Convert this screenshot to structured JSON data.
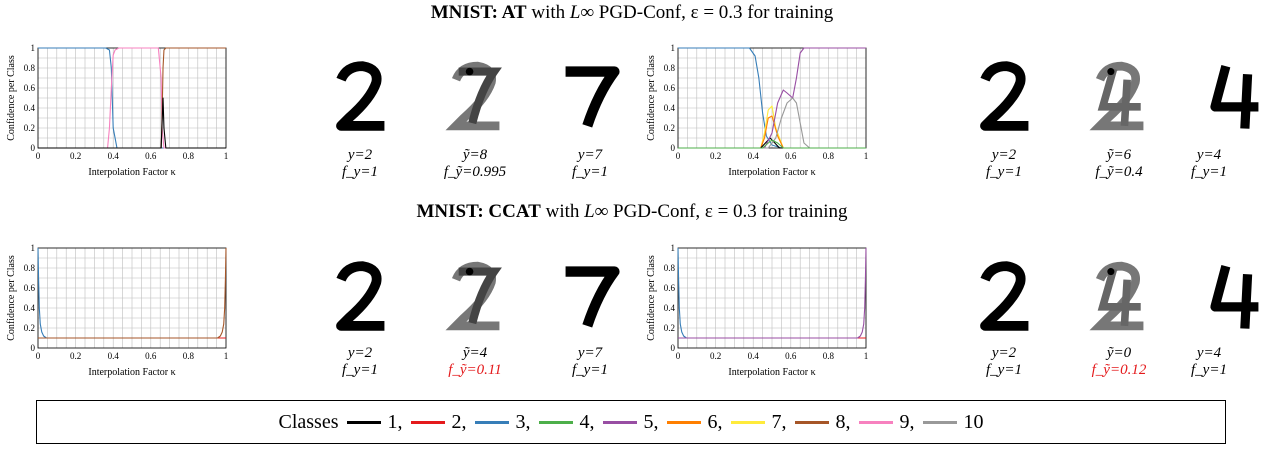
{
  "titles": [
    {
      "bold": "MNIST: AT",
      "math": "L∞",
      "text": " PGD-Conf, ε = 0.3 for training"
    },
    {
      "bold": "MNIST: CCAT",
      "math": "L∞",
      "text": " PGD-Conf, ε = 0.3 for training"
    }
  ],
  "title_joiner": " with ",
  "class_colors": [
    "#000000",
    "#e41a1c",
    "#377eb8",
    "#4daf4a",
    "#984ea3",
    "#ff7f00",
    "#ffeb3b",
    "#a65628",
    "#f781bf",
    "#999999"
  ],
  "legend": {
    "label": "Classes",
    "items": [
      "1,",
      "2,",
      "3,",
      "4,",
      "5,",
      "6,",
      "7,",
      "8,",
      "9,",
      "10"
    ]
  },
  "captions": [
    [
      {
        "a": "y=2",
        "b": "f_y=1"
      },
      {
        "a": "ỹ=8",
        "b": "f_ỹ=0.995"
      },
      {
        "a": "y=7",
        "b": "f_y=1"
      }
    ],
    [
      {
        "a": "y=2",
        "b": "f_y=1"
      },
      {
        "a": "ỹ=6",
        "b": "f_ỹ=0.4"
      },
      {
        "a": "y=4",
        "b": "f_y=1"
      }
    ],
    [
      {
        "a": "y=2",
        "b": "f_y=1"
      },
      {
        "a": "ỹ=4",
        "b": "f_ỹ=0.11",
        "red": true
      },
      {
        "a": "y=7",
        "b": "f_y=1"
      }
    ],
    [
      {
        "a": "y=2",
        "b": "f_y=1"
      },
      {
        "a": "ỹ=0",
        "b": "f_ỹ=0.12",
        "red": true
      },
      {
        "a": "y=4",
        "b": "f_y=1"
      }
    ]
  ],
  "chart_data": [
    {
      "type": "line",
      "title": "",
      "xlabel": "Interpolation Factor κ",
      "ylabel": "Confidence per Class",
      "xlim": [
        0,
        1
      ],
      "ylim": [
        0,
        1
      ],
      "grid": true,
      "xticks": [
        "0",
        "0.2",
        "0.4",
        "0.6",
        "0.8",
        "1"
      ],
      "yticks": [
        "0",
        "0.2",
        "0.4",
        "0.6",
        "0.8",
        "1"
      ],
      "series": [
        {
          "class": 3,
          "x": [
            0,
            0.36,
            0.38,
            0.39,
            0.4,
            0.42,
            1
          ],
          "y": [
            1,
            1,
            0.98,
            0.8,
            0.2,
            0,
            0
          ]
        },
        {
          "class": 9,
          "x": [
            0,
            0.37,
            0.38,
            0.39,
            0.4,
            0.41,
            0.43,
            0.64,
            0.655,
            0.66,
            0.67,
            1
          ],
          "y": [
            0,
            0,
            0.2,
            0.6,
            0.93,
            0.98,
            1,
            1,
            0.7,
            0.2,
            0,
            0
          ]
        },
        {
          "class": 8,
          "x": [
            0,
            0.655,
            0.66,
            0.665,
            0.67,
            0.68,
            1
          ],
          "y": [
            0,
            0,
            0.3,
            0.8,
            0.98,
            1,
            1
          ]
        },
        {
          "class": 1,
          "x": [
            0,
            0.655,
            0.665,
            0.67,
            0.68,
            1
          ],
          "y": [
            0,
            0,
            0.5,
            0.2,
            0,
            0
          ]
        }
      ]
    },
    {
      "type": "line",
      "title": "",
      "xlabel": "Interpolation Factor κ",
      "ylabel": "Confidence per Class",
      "xlim": [
        0,
        1
      ],
      "ylim": [
        0,
        1
      ],
      "grid": true,
      "xticks": [
        "0",
        "0.2",
        "0.4",
        "0.6",
        "0.8",
        "1"
      ],
      "yticks": [
        "0",
        "0.2",
        "0.4",
        "0.6",
        "0.8",
        "1"
      ],
      "series": [
        {
          "class": 3,
          "x": [
            0,
            0.38,
            0.41,
            0.43,
            0.45,
            0.47,
            0.5,
            0.55,
            1
          ],
          "y": [
            1,
            1,
            0.92,
            0.7,
            0.35,
            0.12,
            0.03,
            0,
            0
          ]
        },
        {
          "class": 7,
          "x": [
            0,
            0.44,
            0.46,
            0.48,
            0.5,
            0.52,
            0.56,
            1
          ],
          "y": [
            0,
            0,
            0.15,
            0.38,
            0.42,
            0.2,
            0,
            0
          ]
        },
        {
          "class": 6,
          "x": [
            0,
            0.44,
            0.46,
            0.48,
            0.5,
            0.53,
            0.56,
            1
          ],
          "y": [
            0,
            0,
            0.1,
            0.3,
            0.32,
            0.12,
            0,
            0
          ]
        },
        {
          "class": 1,
          "x": [
            0,
            0.44,
            0.47,
            0.49,
            0.51,
            0.54,
            1
          ],
          "y": [
            0,
            0,
            0.06,
            0.1,
            0.06,
            0,
            0
          ]
        },
        {
          "class": 5,
          "x": [
            0,
            0.46,
            0.5,
            0.53,
            0.56,
            0.58,
            0.61,
            0.63,
            0.65,
            0.67,
            1
          ],
          "y": [
            0,
            0,
            0.15,
            0.45,
            0.58,
            0.55,
            0.5,
            0.7,
            0.95,
            1,
            1
          ]
        },
        {
          "class": 10,
          "x": [
            0,
            0.48,
            0.52,
            0.55,
            0.58,
            0.61,
            0.63,
            0.65,
            0.67,
            0.7,
            1
          ],
          "y": [
            0,
            0,
            0.1,
            0.3,
            0.45,
            0.5,
            0.45,
            0.25,
            0.05,
            0,
            0
          ]
        },
        {
          "class": 4,
          "x": [
            0,
            0.45,
            0.48,
            0.5,
            0.53,
            0.56,
            1
          ],
          "y": [
            0,
            0,
            0.05,
            0.08,
            0.05,
            0,
            0
          ]
        }
      ]
    },
    {
      "type": "line",
      "title": "",
      "xlabel": "Interpolation Factor κ",
      "ylabel": "Confidence per Class",
      "xlim": [
        0,
        1
      ],
      "ylim": [
        0,
        1
      ],
      "grid": true,
      "xticks": [
        "0",
        "0.2",
        "0.4",
        "0.6",
        "0.8",
        "1"
      ],
      "yticks": [
        "0",
        "0.2",
        "0.4",
        "0.6",
        "0.8",
        "1"
      ],
      "series": [
        {
          "class": 3,
          "x": [
            0,
            0.003,
            0.007,
            0.012,
            0.02,
            0.03,
            0.045,
            1
          ],
          "y": [
            1,
            0.7,
            0.4,
            0.24,
            0.16,
            0.12,
            0.1,
            0.1
          ]
        },
        {
          "class": 1,
          "x": [
            0,
            1
          ],
          "y": [
            0.1,
            0.1
          ]
        },
        {
          "class": 2,
          "x": [
            0,
            1
          ],
          "y": [
            0.1,
            0.1
          ]
        },
        {
          "class": 8,
          "x": [
            0,
            0.955,
            0.97,
            0.98,
            0.988,
            0.993,
            0.997,
            1
          ],
          "y": [
            0.1,
            0.1,
            0.12,
            0.16,
            0.24,
            0.4,
            0.7,
            1
          ]
        }
      ]
    },
    {
      "type": "line",
      "title": "",
      "xlabel": "Interpolation Factor κ",
      "ylabel": "Confidence per Class",
      "xlim": [
        0,
        1
      ],
      "ylim": [
        0,
        1
      ],
      "grid": true,
      "xticks": [
        "0",
        "0.2",
        "0.4",
        "0.6",
        "0.8",
        "1"
      ],
      "yticks": [
        "0",
        "0.2",
        "0.4",
        "0.6",
        "0.8",
        "1"
      ],
      "series": [
        {
          "class": 3,
          "x": [
            0,
            0.003,
            0.007,
            0.012,
            0.02,
            0.03,
            0.045,
            1
          ],
          "y": [
            1,
            0.7,
            0.4,
            0.24,
            0.16,
            0.12,
            0.1,
            0.1
          ]
        },
        {
          "class": 1,
          "x": [
            0,
            1
          ],
          "y": [
            0.1,
            0.1
          ]
        },
        {
          "class": 2,
          "x": [
            0,
            1
          ],
          "y": [
            0.1,
            0.1
          ]
        },
        {
          "class": 5,
          "x": [
            0,
            0.955,
            0.97,
            0.98,
            0.988,
            0.993,
            0.997,
            1
          ],
          "y": [
            0.1,
            0.1,
            0.12,
            0.16,
            0.24,
            0.4,
            0.7,
            1
          ]
        }
      ]
    }
  ]
}
